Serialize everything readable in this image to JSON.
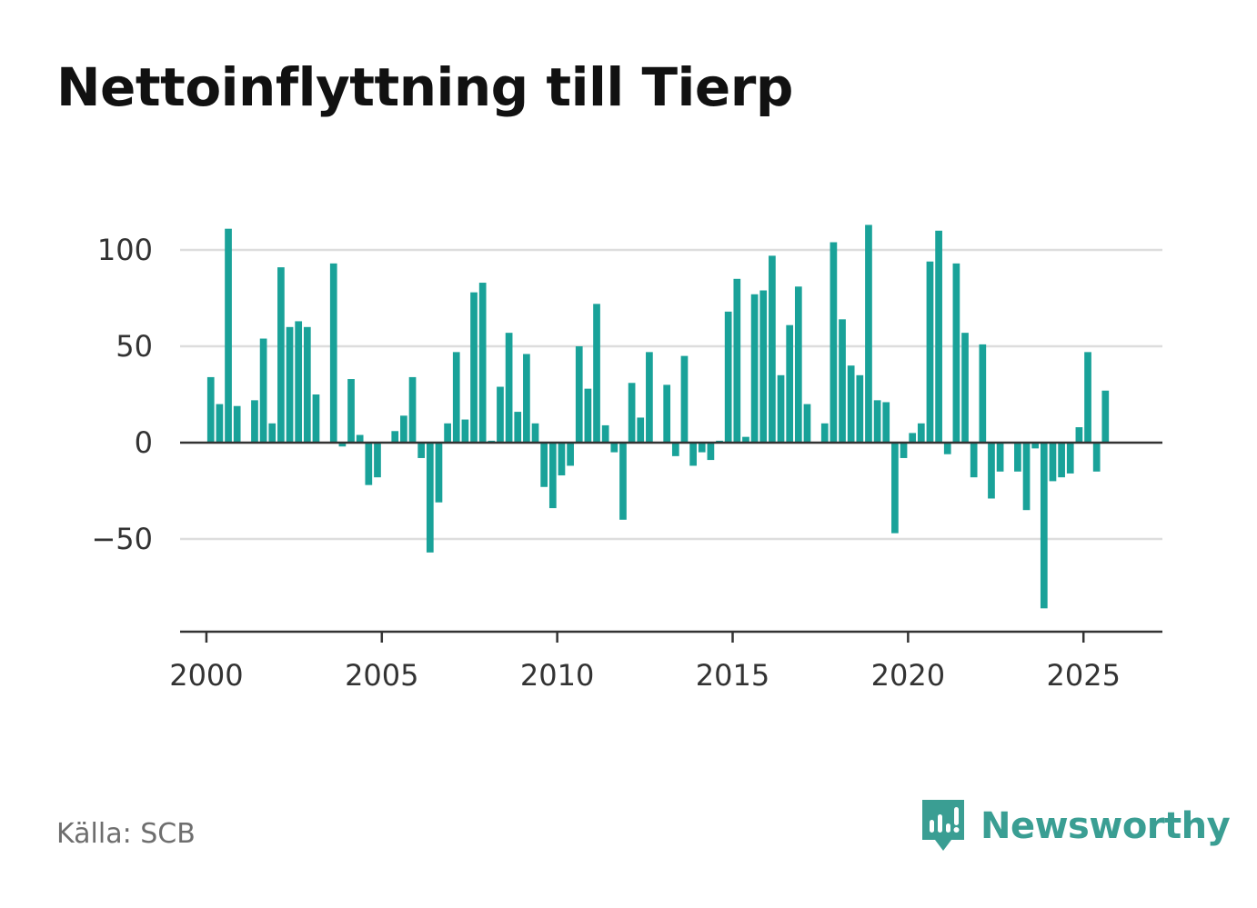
{
  "title": "Nettoinflyttning till Tierp",
  "source": "Källa: SCB",
  "brand": {
    "name": "Newsworthy",
    "icon": "newsworthy-logo-icon",
    "color": "#3a9e93"
  },
  "colors": {
    "bar": "#19a299",
    "zero_line": "#333333",
    "grid": "#dddddd",
    "axis": "#333333"
  },
  "chart_data": {
    "type": "bar",
    "title": "Nettoinflyttning till Tierp",
    "xlabel": "",
    "ylabel": "",
    "frequency": "quarterly",
    "start_year": 2000,
    "xlim": [
      1999.25,
      2027.25
    ],
    "ylim": [
      -100,
      120
    ],
    "yticks": [
      -50,
      0,
      50,
      100
    ],
    "ytick_labels": [
      "−50",
      "0",
      "50",
      "100"
    ],
    "xticks": [
      2000,
      2005,
      2010,
      2015,
      2020,
      2025
    ],
    "xtick_labels": [
      "2000",
      "2005",
      "2010",
      "2015",
      "2020",
      "2025"
    ],
    "grid": true,
    "legend": "none",
    "values": [
      34,
      20,
      111,
      19,
      0,
      22,
      54,
      10,
      91,
      60,
      63,
      60,
      25,
      0,
      93,
      -2,
      33,
      4,
      -22,
      -18,
      0,
      6,
      14,
      34,
      -8,
      -57,
      -31,
      10,
      47,
      12,
      78,
      83,
      1,
      29,
      57,
      16,
      46,
      10,
      -23,
      -34,
      -17,
      -12,
      50,
      28,
      72,
      9,
      -5,
      -40,
      31,
      13,
      47,
      0,
      30,
      -7,
      45,
      -12,
      -5,
      -9,
      1,
      68,
      85,
      3,
      77,
      79,
      97,
      35,
      61,
      81,
      20,
      0,
      10,
      104,
      64,
      40,
      35,
      113,
      22,
      21,
      -47,
      -8,
      5,
      10,
      94,
      110,
      -6,
      93,
      57,
      -18,
      51,
      -29,
      -15,
      0,
      -15,
      -35,
      -3,
      -86,
      -20,
      -18,
      -16,
      8,
      47,
      -15,
      27
    ]
  }
}
